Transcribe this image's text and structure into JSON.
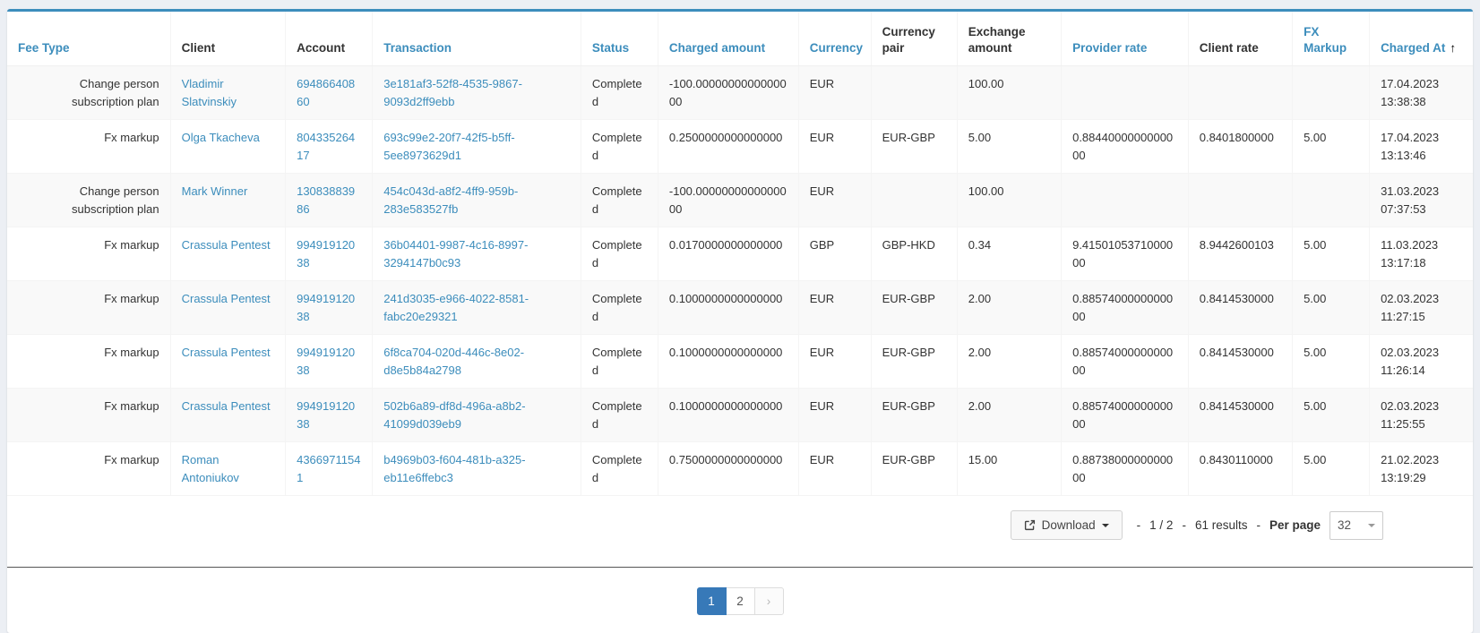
{
  "theme": {
    "accent": "#3c8dbc",
    "link_color": "#3c8dbc",
    "active_page_bg": "#3779b8",
    "page_background": "#eceff4",
    "stripe_color": "#f9f9f9"
  },
  "icons": {
    "download_button": "export-icon",
    "download_caret": "caret-down-icon",
    "per_page_caret": "caret-down-icon",
    "sort_ascending": "arrow-up-icon"
  },
  "table": {
    "sort_icon_glyph": "↑",
    "columns": [
      {
        "key": "fee_type",
        "label": "Fee Type",
        "sortable": true
      },
      {
        "key": "client",
        "label": "Client",
        "sortable": false
      },
      {
        "key": "account",
        "label": "Account",
        "sortable": false
      },
      {
        "key": "transaction",
        "label": "Transaction",
        "sortable": true
      },
      {
        "key": "status",
        "label": "Status",
        "sortable": true
      },
      {
        "key": "charged_amount",
        "label": "Charged amount",
        "sortable": true
      },
      {
        "key": "currency",
        "label": "Currency",
        "sortable": true
      },
      {
        "key": "currency_pair",
        "label": "Currency pair",
        "sortable": false
      },
      {
        "key": "exchange_amount",
        "label": "Exchange amount",
        "sortable": false
      },
      {
        "key": "provider_rate",
        "label": "Provider rate",
        "sortable": true
      },
      {
        "key": "client_rate",
        "label": "Client rate",
        "sortable": false
      },
      {
        "key": "fx_markup",
        "label": "FX Markup",
        "sortable": true
      },
      {
        "key": "charged_at",
        "label": "Charged At",
        "sortable": true,
        "sorted": "ascending"
      }
    ],
    "link_columns": [
      "client",
      "account",
      "transaction"
    ],
    "rows": [
      {
        "fee_type": "Change person subscription plan",
        "client": "Vladimir Slatvinskiy",
        "account": "69486640860",
        "transaction": "3e181af3-52f8-4535-9867-9093d2ff9ebb",
        "status": "Completed",
        "charged_amount": "-100.0000000000000000",
        "currency": "EUR",
        "currency_pair": "",
        "exchange_amount": "100.00",
        "provider_rate": "",
        "client_rate": "",
        "fx_markup": "",
        "charged_at_date": "17.04.2023",
        "charged_at_time": "13:38:38"
      },
      {
        "fee_type": "Fx markup",
        "client": "Olga Tkacheva",
        "account": "80433526417",
        "transaction": "693c99e2-20f7-42f5-b5ff-5ee8973629d1",
        "status": "Completed",
        "charged_amount": "0.2500000000000000",
        "currency": "EUR",
        "currency_pair": "EUR-GBP",
        "exchange_amount": "5.00",
        "provider_rate": "0.8844000000000000",
        "client_rate": "0.8401800000",
        "fx_markup": "5.00",
        "charged_at_date": "17.04.2023",
        "charged_at_time": "13:13:46"
      },
      {
        "fee_type": "Change person subscription plan",
        "client": "Mark Winner",
        "account": "13083883986",
        "transaction": "454c043d-a8f2-4ff9-959b-283e583527fb",
        "status": "Completed",
        "charged_amount": "-100.0000000000000000",
        "currency": "EUR",
        "currency_pair": "",
        "exchange_amount": "100.00",
        "provider_rate": "",
        "client_rate": "",
        "fx_markup": "",
        "charged_at_date": "31.03.2023",
        "charged_at_time": "07:37:53"
      },
      {
        "fee_type": "Fx markup",
        "client": "Crassula Pentest",
        "account": "99491912038",
        "transaction": "36b04401-9987-4c16-8997-3294147b0c93",
        "status": "Completed",
        "charged_amount": "0.0170000000000000",
        "currency": "GBP",
        "currency_pair": "GBP-HKD",
        "exchange_amount": "0.34",
        "provider_rate": "9.4150105371000000",
        "client_rate": "8.9442600103",
        "fx_markup": "5.00",
        "charged_at_date": "11.03.2023",
        "charged_at_time": "13:17:18"
      },
      {
        "fee_type": "Fx markup",
        "client": "Crassula Pentest",
        "account": "99491912038",
        "transaction": "241d3035-e966-4022-8581-fabc20e29321",
        "status": "Completed",
        "charged_amount": "0.1000000000000000",
        "currency": "EUR",
        "currency_pair": "EUR-GBP",
        "exchange_amount": "2.00",
        "provider_rate": "0.8857400000000000",
        "client_rate": "0.8414530000",
        "fx_markup": "5.00",
        "charged_at_date": "02.03.2023",
        "charged_at_time": "11:27:15"
      },
      {
        "fee_type": "Fx markup",
        "client": "Crassula Pentest",
        "account": "99491912038",
        "transaction": "6f8ca704-020d-446c-8e02-d8e5b84a2798",
        "status": "Completed",
        "charged_amount": "0.1000000000000000",
        "currency": "EUR",
        "currency_pair": "EUR-GBP",
        "exchange_amount": "2.00",
        "provider_rate": "0.8857400000000000",
        "client_rate": "0.8414530000",
        "fx_markup": "5.00",
        "charged_at_date": "02.03.2023",
        "charged_at_time": "11:26:14"
      },
      {
        "fee_type": "Fx markup",
        "client": "Crassula Pentest",
        "account": "99491912038",
        "transaction": "502b6a89-df8d-496a-a8b2-41099d039eb9",
        "status": "Completed",
        "charged_amount": "0.1000000000000000",
        "currency": "EUR",
        "currency_pair": "EUR-GBP",
        "exchange_amount": "2.00",
        "provider_rate": "0.8857400000000000",
        "client_rate": "0.8414530000",
        "fx_markup": "5.00",
        "charged_at_date": "02.03.2023",
        "charged_at_time": "11:25:55"
      },
      {
        "fee_type": "Fx markup",
        "client": "Roman Antoniukov",
        "account": "43669711541",
        "transaction": "b4969b03-f604-481b-a325-eb11e6ffebc3",
        "status": "Completed",
        "charged_amount": "0.7500000000000000",
        "currency": "EUR",
        "currency_pair": "EUR-GBP",
        "exchange_amount": "15.00",
        "provider_rate": "0.8873800000000000",
        "client_rate": "0.8430110000",
        "fx_markup": "5.00",
        "charged_at_date": "21.02.2023",
        "charged_at_time": "13:19:29"
      }
    ]
  },
  "footer": {
    "download_label": "Download",
    "dash": "-",
    "page_indicator": "1 / 2",
    "results": "61 results",
    "per_page_label": "Per page",
    "per_page_value": "32"
  },
  "pagination": {
    "items": [
      {
        "label": "1",
        "active": true,
        "role": "page"
      },
      {
        "label": "2",
        "active": false,
        "role": "page"
      },
      {
        "label": "›",
        "active": false,
        "role": "next"
      }
    ]
  }
}
